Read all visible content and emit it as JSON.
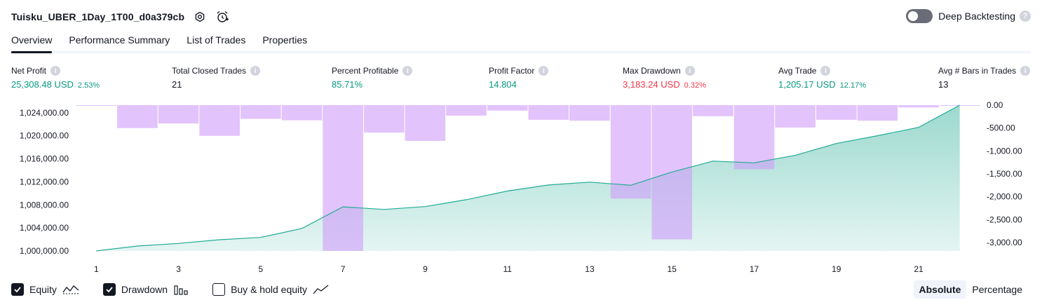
{
  "header": {
    "title": "Tuisku_UBER_1Day_1T00_d0a379cb",
    "settings_icon": "gear-icon",
    "alarm_icon": "alarm-clock-icon",
    "deep_backtesting_label": "Deep Backtesting",
    "deep_backtesting_on": false,
    "help_glyph": "?"
  },
  "tabs": [
    {
      "label": "Overview",
      "active": true
    },
    {
      "label": "Performance Summary",
      "active": false
    },
    {
      "label": "List of Trades",
      "active": false
    },
    {
      "label": "Properties",
      "active": false
    }
  ],
  "metrics": [
    {
      "label": "Net Profit",
      "value": "25,308.48 USD",
      "pct": "2.53%",
      "tone": "pos"
    },
    {
      "label": "Total Closed Trades",
      "value": "21",
      "pct": "",
      "tone": "neu"
    },
    {
      "label": "Percent Profitable",
      "value": "85.71%",
      "pct": "",
      "tone": "pos"
    },
    {
      "label": "Profit Factor",
      "value": "14.804",
      "pct": "",
      "tone": "pos"
    },
    {
      "label": "Max Drawdown",
      "value": "3,183.24 USD",
      "pct": "0.32%",
      "tone": "neg"
    },
    {
      "label": "Avg Trade",
      "value": "1,205.17 USD",
      "pct": "12.17%",
      "tone": "pos"
    },
    {
      "label": "Avg # Bars in Trades",
      "value": "13",
      "pct": "",
      "tone": "neu"
    }
  ],
  "info_glyph": "i",
  "chart_data": {
    "type": "line+bar",
    "x": [
      1,
      2,
      3,
      4,
      5,
      6,
      7,
      8,
      9,
      10,
      11,
      12,
      13,
      14,
      15,
      16,
      17,
      18,
      19,
      20,
      21,
      22
    ],
    "x_tick_labels": [
      "1",
      "3",
      "5",
      "7",
      "9",
      "11",
      "13",
      "15",
      "17",
      "19",
      "21"
    ],
    "left_axis": {
      "ticks": [
        "1,024,000.00",
        "1,020,000.00",
        "1,016,000.00",
        "1,012,000.00",
        "1,008,000.00",
        "1,004,000.00",
        "1,000,000.00"
      ],
      "ylim": [
        1000000,
        1025308
      ]
    },
    "right_axis": {
      "ticks": [
        "0.00",
        "-500.00",
        "-1,000.00",
        "-1,500.00",
        "-2,000.00",
        "-2,500.00",
        "-3,000.00"
      ],
      "ylim": [
        -3183.24,
        0
      ]
    },
    "series": [
      {
        "name": "Equity",
        "type": "area",
        "color": "#22ab94",
        "values": [
          1000000,
          1000850,
          1001300,
          1001950,
          1002350,
          1003900,
          1007650,
          1007200,
          1007700,
          1008900,
          1010400,
          1011450,
          1011950,
          1011400,
          1013700,
          1015600,
          1015300,
          1016600,
          1018650,
          1020000,
          1021450,
          1025308
        ]
      },
      {
        "name": "Drawdown",
        "type": "bar",
        "color": "#cf9bfa",
        "values": [
          0,
          -500,
          -400,
          -670,
          -300,
          -330,
          -3183,
          -600,
          -780,
          -230,
          -120,
          -320,
          -340,
          -2040,
          -2930,
          -240,
          -1400,
          -490,
          -320,
          -340,
          -50,
          0
        ]
      }
    ],
    "grid": false
  },
  "legend": {
    "items": [
      {
        "label": "Equity",
        "checked": true,
        "icon": "equity-line-icon"
      },
      {
        "label": "Drawdown",
        "checked": true,
        "icon": "drawdown-bars-icon"
      },
      {
        "label": "Buy & hold equity",
        "checked": false,
        "icon": "buy-hold-line-icon"
      }
    ]
  },
  "mode": {
    "options": [
      {
        "label": "Absolute",
        "selected": true
      },
      {
        "label": "Percentage",
        "selected": false
      }
    ]
  },
  "colors": {
    "text": "#131722",
    "positive": "#089981",
    "negative": "#f23645",
    "equity_line": "#22ab94",
    "drawdown_bar": "#cf9bfa"
  }
}
